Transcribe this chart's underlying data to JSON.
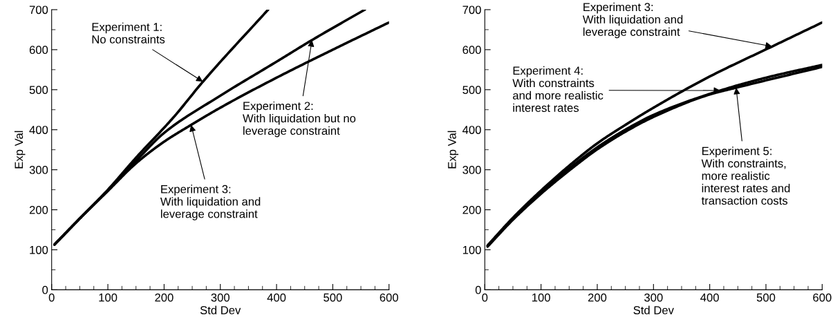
{
  "chart_data": [
    {
      "type": "line",
      "xlabel": "Std Dev",
      "ylabel": "Exp Val",
      "xlim": [
        0,
        600
      ],
      "ylim": [
        0,
        700
      ],
      "xticks": [
        0,
        100,
        200,
        300,
        400,
        500,
        600
      ],
      "yticks": [
        0,
        100,
        200,
        300,
        400,
        500,
        600,
        700
      ],
      "grid": false,
      "legend": false,
      "marker": "none",
      "line_style": "solid",
      "series": [
        {
          "color": "#000000",
          "x": [
            5,
            50,
            100,
            150,
            218,
            269,
            385
          ],
          "values": [
            113,
            178,
            250,
            330,
            433,
            520,
            700
          ]
        },
        {
          "color": "#000000",
          "x": [
            5,
            50,
            100,
            150,
            200,
            300,
            400,
            463,
            557
          ],
          "values": [
            113,
            178,
            248,
            322,
            392,
            485,
            570,
            624,
            700
          ]
        },
        {
          "color": "#000000",
          "x": [
            5,
            50,
            100,
            150,
            200,
            248,
            300,
            400,
            500,
            600
          ],
          "values": [
            113,
            178,
            247,
            316,
            370,
            412,
            455,
            530,
            600,
            668
          ]
        }
      ],
      "annotations": [
        {
          "text": "Experiment 1:\nNo constraints",
          "x": 269,
          "y": 520
        },
        {
          "text": "Experiment 2:\nWith liquidation but no\nleverage constraint",
          "x": 463,
          "y": 624
        },
        {
          "text": "Experiment 3:\nWith liquidation and\nleverage constraint",
          "x": 248,
          "y": 412
        }
      ]
    },
    {
      "type": "line",
      "xlabel": "Std Dev",
      "ylabel": "Exp Val",
      "xlim": [
        0,
        600
      ],
      "ylim": [
        0,
        700
      ],
      "xticks": [
        0,
        100,
        200,
        300,
        400,
        500,
        600
      ],
      "yticks": [
        0,
        100,
        200,
        300,
        400,
        500,
        600,
        700
      ],
      "grid": false,
      "legend": false,
      "marker": "none",
      "line_style": "solid",
      "series": [
        {
          "color": "#000000",
          "x": [
            5,
            50,
            100,
            150,
            200,
            250,
            300,
            400,
            511,
            600
          ],
          "values": [
            111,
            180,
            248,
            310,
            366,
            412,
            455,
            533,
            608,
            668
          ]
        },
        {
          "color": "#000000",
          "x": [
            5,
            50,
            100,
            150,
            200,
            250,
            300,
            419,
            500,
            600
          ],
          "values": [
            110,
            178,
            244,
            303,
            356,
            400,
            437,
            498,
            530,
            562
          ]
        },
        {
          "color": "#000000",
          "x": [
            5,
            50,
            100,
            150,
            200,
            250,
            300,
            400,
            447,
            600
          ],
          "values": [
            108,
            175,
            240,
            298,
            351,
            395,
            432,
            488,
            505,
            557
          ]
        }
      ],
      "annotations": [
        {
          "text": "Experiment 3:\nWith liquidation and\nleverage constraint",
          "x": 511,
          "y": 608
        },
        {
          "text": "Experiment 4:\nWith constraints\nand more realistic\ninterest rates",
          "x": 419,
          "y": 498
        },
        {
          "text": "Experiment 5:\nWith constraints,\nmore realistic\ninterest rates and\ntransaction costs",
          "x": 447,
          "y": 505
        }
      ]
    }
  ]
}
